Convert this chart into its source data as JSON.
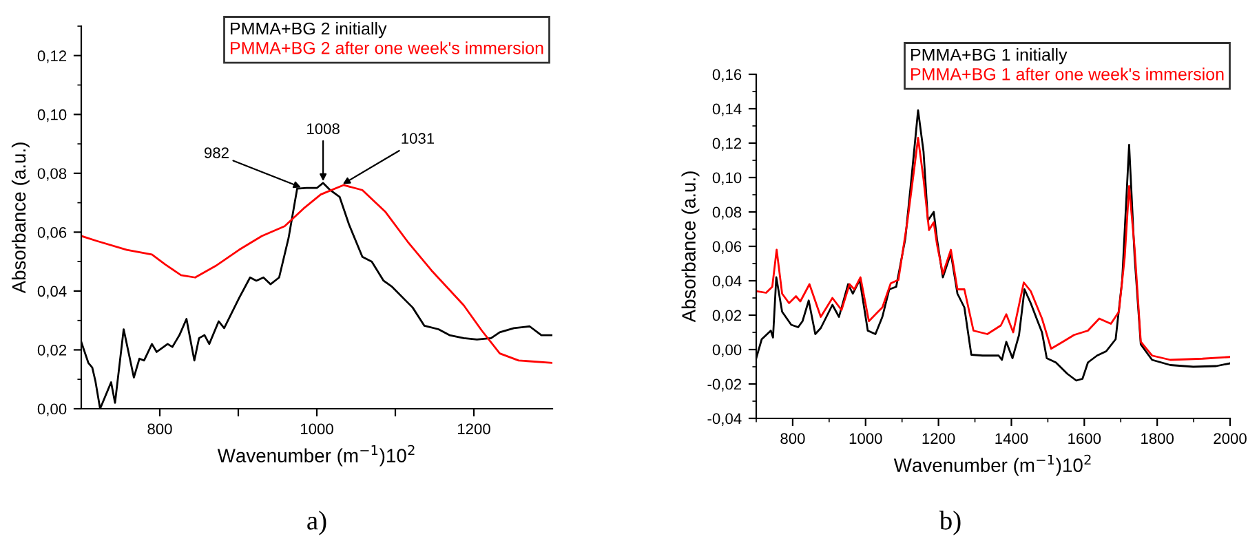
{
  "chart_data": [
    {
      "type": "line",
      "xlabel": "Wavenumber (m$^{−1}$)10$^{2}$",
      "ylabel": "Absorbance (a.u.)",
      "xlim": [
        700,
        1300
      ],
      "ylim": [
        0,
        0.13
      ],
      "xticks": [
        800,
        {
          "value": 900,
          "label": null
        },
        1000,
        {
          "value": 1100,
          "label": null
        },
        1200
      ],
      "yticks": [
        {
          "value": 0,
          "label": "0,00"
        },
        {
          "value": 0.02,
          "label": "0,02"
        },
        {
          "value": 0.04,
          "label": "0,04"
        },
        {
          "value": 0.06,
          "label": "0,06"
        },
        {
          "value": 0.08,
          "label": "0,08"
        },
        {
          "value": 0.1,
          "label": "0,10"
        },
        {
          "value": 0.12,
          "label": "0,12"
        }
      ],
      "legend": "top right",
      "grid": false,
      "annotations": [
        {
          "text": "982",
          "x": 982,
          "y": 0.075
        },
        {
          "text": "1008",
          "x": 1008,
          "y": 0.0767
        },
        {
          "text": "1031",
          "x": 1031,
          "y": 0.076
        },
        "a)"
      ],
      "series": [
        {
          "name": "PMMA+BG 2 initially",
          "color": "#000000",
          "x": [
            700,
            709,
            714,
            718,
            724,
            738,
            743,
            754,
            767,
            774,
            780,
            790,
            796,
            810,
            816,
            825,
            834,
            844,
            850,
            857,
            863,
            875,
            882,
            901,
            915,
            923,
            932,
            941,
            952,
            964,
            975,
            987,
            1000,
            1008,
            1017,
            1029,
            1041,
            1058,
            1070,
            1085,
            1096,
            1113,
            1122,
            1137,
            1155,
            1169,
            1187,
            1204,
            1222,
            1233,
            1251,
            1271,
            1286,
            1300
          ],
          "values": [
            0.0227,
            0.0156,
            0.014,
            0.0094,
            0,
            0.009,
            0.002,
            0.027,
            0.0106,
            0.017,
            0.0164,
            0.022,
            0.0193,
            0.022,
            0.021,
            0.025,
            0.0305,
            0.0164,
            0.024,
            0.025,
            0.022,
            0.0297,
            0.0274,
            0.0376,
            0.0446,
            0.0435,
            0.0446,
            0.0423,
            0.0446,
            0.058,
            0.0748,
            0.075,
            0.075,
            0.0767,
            0.0743,
            0.072,
            0.0626,
            0.0516,
            0.05,
            0.0435,
            0.0414,
            0.0368,
            0.0344,
            0.0282,
            0.027,
            0.025,
            0.024,
            0.0235,
            0.024,
            0.026,
            0.0274,
            0.028,
            0.025,
            0.025
          ]
        },
        {
          "name": "PMMA+BG 2 after one week's immersion",
          "color": "#ff0000",
          "x": [
            700,
            720,
            758,
            790,
            807,
            827,
            845,
            871,
            901,
            930,
            959,
            983,
            1005,
            1034,
            1058,
            1087,
            1117,
            1146,
            1187,
            1210,
            1233,
            1257,
            1300
          ],
          "values": [
            0.0587,
            0.057,
            0.054,
            0.0524,
            0.049,
            0.0454,
            0.0446,
            0.0485,
            0.054,
            0.0587,
            0.062,
            0.068,
            0.0728,
            0.076,
            0.0743,
            0.067,
            0.0563,
            0.047,
            0.0352,
            0.0266,
            0.0188,
            0.0164,
            0.0156
          ]
        }
      ]
    },
    {
      "type": "line",
      "xlabel": "Wavenumber (m$^{−1}$)10$^{2}$",
      "ylabel": "Absorbance (a.u.)",
      "xlim": [
        700,
        2000
      ],
      "ylim": [
        -0.04,
        0.16
      ],
      "xticks": [
        800,
        1000,
        1200,
        1400,
        1600,
        1800,
        2000
      ],
      "yticks": [
        {
          "value": -0.04,
          "label": "-0,04"
        },
        {
          "value": -0.02,
          "label": "-0,02"
        },
        {
          "value": 0,
          "label": "0,00"
        },
        {
          "value": 0.02,
          "label": "0,02"
        },
        {
          "value": 0.04,
          "label": "0,04"
        },
        {
          "value": 0.06,
          "label": "0,06"
        },
        {
          "value": 0.08,
          "label": "0,08"
        },
        {
          "value": 0.1,
          "label": "0,10"
        },
        {
          "value": 0.12,
          "label": "0,12"
        },
        {
          "value": 0.14,
          "label": "0,14"
        },
        {
          "value": 0.16,
          "label": "0,16"
        }
      ],
      "legend": "top right",
      "grid": false,
      "annotations": [
        "b)"
      ],
      "series": [
        {
          "name": "PMMA+BG 1 initially",
          "color": "#000000",
          "x": [
            700,
            715,
            740,
            746,
            755,
            771,
            796,
            815,
            827,
            844,
            862,
            877,
            909,
            927,
            952,
            965,
            984,
            1006,
            1027,
            1046,
            1065,
            1084,
            1109,
            1127,
            1144,
            1159,
            1171,
            1187,
            1196,
            1212,
            1234,
            1252,
            1271,
            1290,
            1321,
            1365,
            1374,
            1386,
            1403,
            1421,
            1436,
            1453,
            1472,
            1484,
            1497,
            1522,
            1553,
            1578,
            1595,
            1610,
            1635,
            1660,
            1686,
            1704,
            1723,
            1738,
            1755,
            1786,
            1836,
            1899,
            1962,
            2000
          ],
          "values": [
            -0.005,
            0.006,
            0.011,
            0.007,
            0.042,
            0.022,
            0.0144,
            0.013,
            0.0165,
            0.0285,
            0.009,
            0.0125,
            0.026,
            0.019,
            0.038,
            0.0325,
            0.0405,
            0.011,
            0.009,
            0.019,
            0.035,
            0.0365,
            0.0645,
            0.102,
            0.139,
            0.115,
            0.075,
            0.08,
            0.064,
            0.042,
            0.056,
            0.0325,
            0.0245,
            -0.003,
            -0.0035,
            -0.0035,
            -0.006,
            0.0045,
            -0.005,
            0.0085,
            0.035,
            0.027,
            0.0165,
            0.01,
            -0.005,
            -0.0075,
            -0.014,
            -0.018,
            -0.017,
            -0.0075,
            -0.0035,
            -0.001,
            0.006,
            0.0405,
            0.119,
            0.054,
            0.003,
            -0.006,
            -0.009,
            -0.01,
            -0.0096,
            -0.008
          ]
        },
        {
          "name": "PMMA+BG 1 after one week's immersion",
          "color": "#ff0000",
          "x": [
            700,
            727,
            744,
            756,
            771,
            790,
            809,
            821,
            846,
            877,
            909,
            934,
            956,
            969,
            986,
            1009,
            1046,
            1069,
            1090,
            1115,
            1134,
            1144,
            1159,
            1174,
            1187,
            1196,
            1212,
            1234,
            1252,
            1271,
            1296,
            1334,
            1371,
            1386,
            1405,
            1434,
            1453,
            1484,
            1509,
            1541,
            1572,
            1610,
            1641,
            1673,
            1695,
            1711,
            1723,
            1738,
            1755,
            1786,
            1836,
            1924,
            2000
          ],
          "values": [
            0.034,
            0.033,
            0.0365,
            0.058,
            0.0325,
            0.027,
            0.031,
            0.028,
            0.038,
            0.019,
            0.03,
            0.023,
            0.038,
            0.035,
            0.042,
            0.0165,
            0.0245,
            0.0385,
            0.0405,
            0.075,
            0.106,
            0.123,
            0.099,
            0.0695,
            0.074,
            0.061,
            0.044,
            0.058,
            0.035,
            0.035,
            0.011,
            0.009,
            0.014,
            0.0205,
            0.01,
            0.039,
            0.034,
            0.018,
            0.0005,
            0.0045,
            0.0085,
            0.011,
            0.018,
            0.015,
            0.022,
            0.054,
            0.095,
            0.059,
            0.0045,
            -0.0035,
            -0.006,
            -0.0053,
            -0.0043
          ]
        }
      ]
    }
  ]
}
